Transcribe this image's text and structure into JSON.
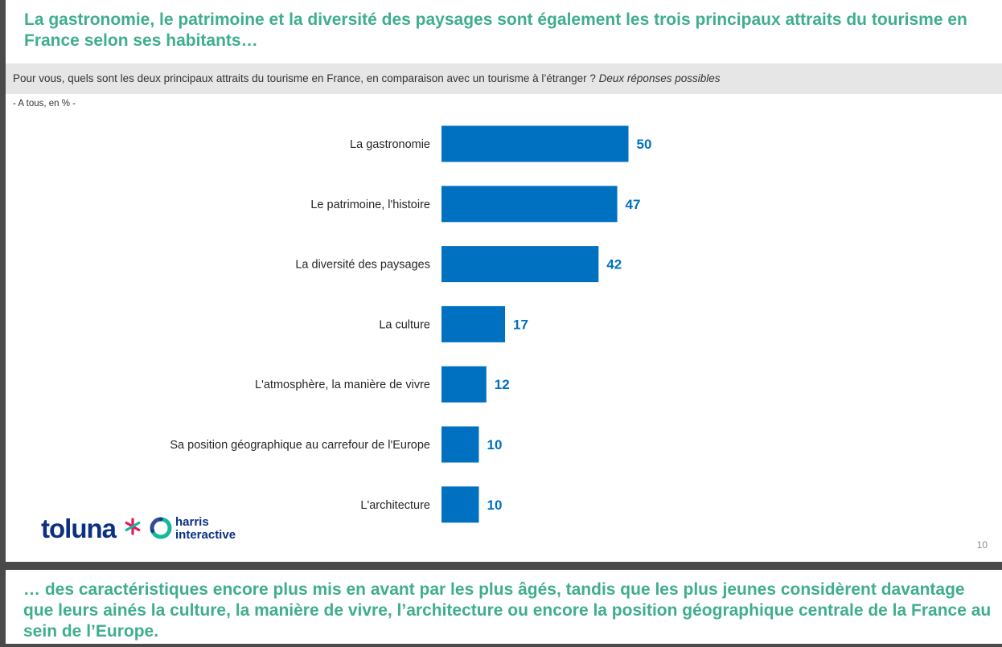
{
  "slide": {
    "title": "La gastronomie, le patrimoine et la diversité des paysages sont également les trois principaux attraits du tourisme en France selon ses habitants…",
    "question": "Pour vous, quels sont les deux principaux attraits du tourisme en France, en comparaison avec un tourisme à l’étranger ?",
    "question_note": "Deux réponses possibles",
    "base": "- A tous, en % -",
    "page_number": "10",
    "bottom_text": "… des caractéristiques encore plus mis en avant par les plus âgés, tandis que les plus jeunes considèrent davantage que leurs ainés la culture, la manière de vivre, l’architecture ou encore la position géographique centrale de la France au sein de l’Europe."
  },
  "logo": {
    "toluna": "toluna",
    "harris_line1": "harris",
    "harris_line2": "interactive",
    "colors": {
      "navy": "#0c2f83",
      "star_pink": "#e8175d",
      "star_teal": "#16b89c"
    }
  },
  "colors": {
    "bar": "#0070c0",
    "accent_green": "#3fae8d",
    "band": "#e6e6e6"
  },
  "chart_data": {
    "type": "bar",
    "orientation": "horizontal",
    "categories": [
      "La gastronomie",
      "Le patrimoine, l'histoire",
      "La diversité des paysages",
      "La culture",
      "L'atmosphère, la manière de vivre",
      "Sa position géographique au carrefour de l'Europe",
      "L'architecture"
    ],
    "values": [
      50,
      47,
      42,
      17,
      12,
      10,
      10
    ],
    "unit": "%",
    "xlim": [
      0,
      100
    ],
    "grid": false,
    "legend": "none",
    "data_labels": true
  }
}
